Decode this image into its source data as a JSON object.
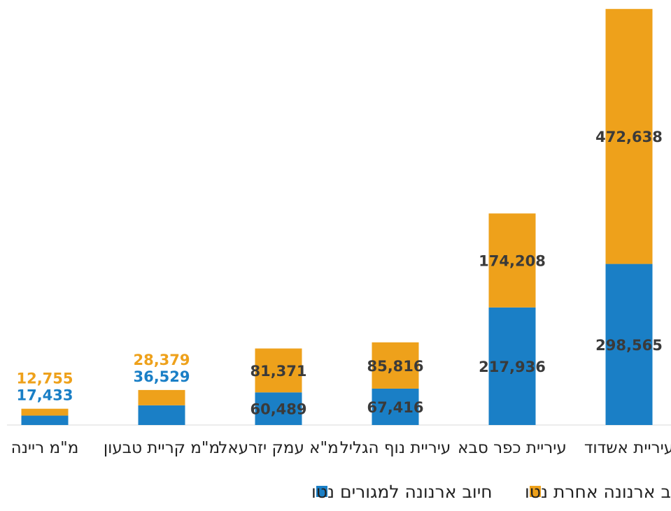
{
  "chart_data": {
    "type": "bar",
    "stacked": true,
    "categories": [
      "עיריית אשדוד",
      "עיריית כפר סבא",
      "עיריית נוף הגליל",
      "מ\"א עמק יזרעאל",
      "מ\"מ קריית טבעון",
      "מ\"מ ריינה"
    ],
    "series": [
      {
        "name": "חיוב ארנונה למגורים נטו",
        "color": "#1a7fc6",
        "values": [
          298565,
          217936,
          67416,
          60489,
          36529,
          17433
        ],
        "labels": [
          "298,565",
          "217,936",
          "67,416",
          "60,489",
          "36,529",
          "17,433"
        ]
      },
      {
        "name": "חיוב ארנונה אחרת נטו",
        "color": "#eea11b",
        "values": [
          472638,
          174208,
          85816,
          81371,
          28379,
          12755
        ],
        "labels": [
          "472,638",
          "174,208",
          "85,816",
          "81,371",
          "28,379",
          "12,755"
        ]
      }
    ],
    "title": "",
    "xlabel": "",
    "ylabel": "",
    "ylim": [
      0,
      780000
    ],
    "grid": false,
    "legend_position": "bottom",
    "direction": "rtl"
  }
}
